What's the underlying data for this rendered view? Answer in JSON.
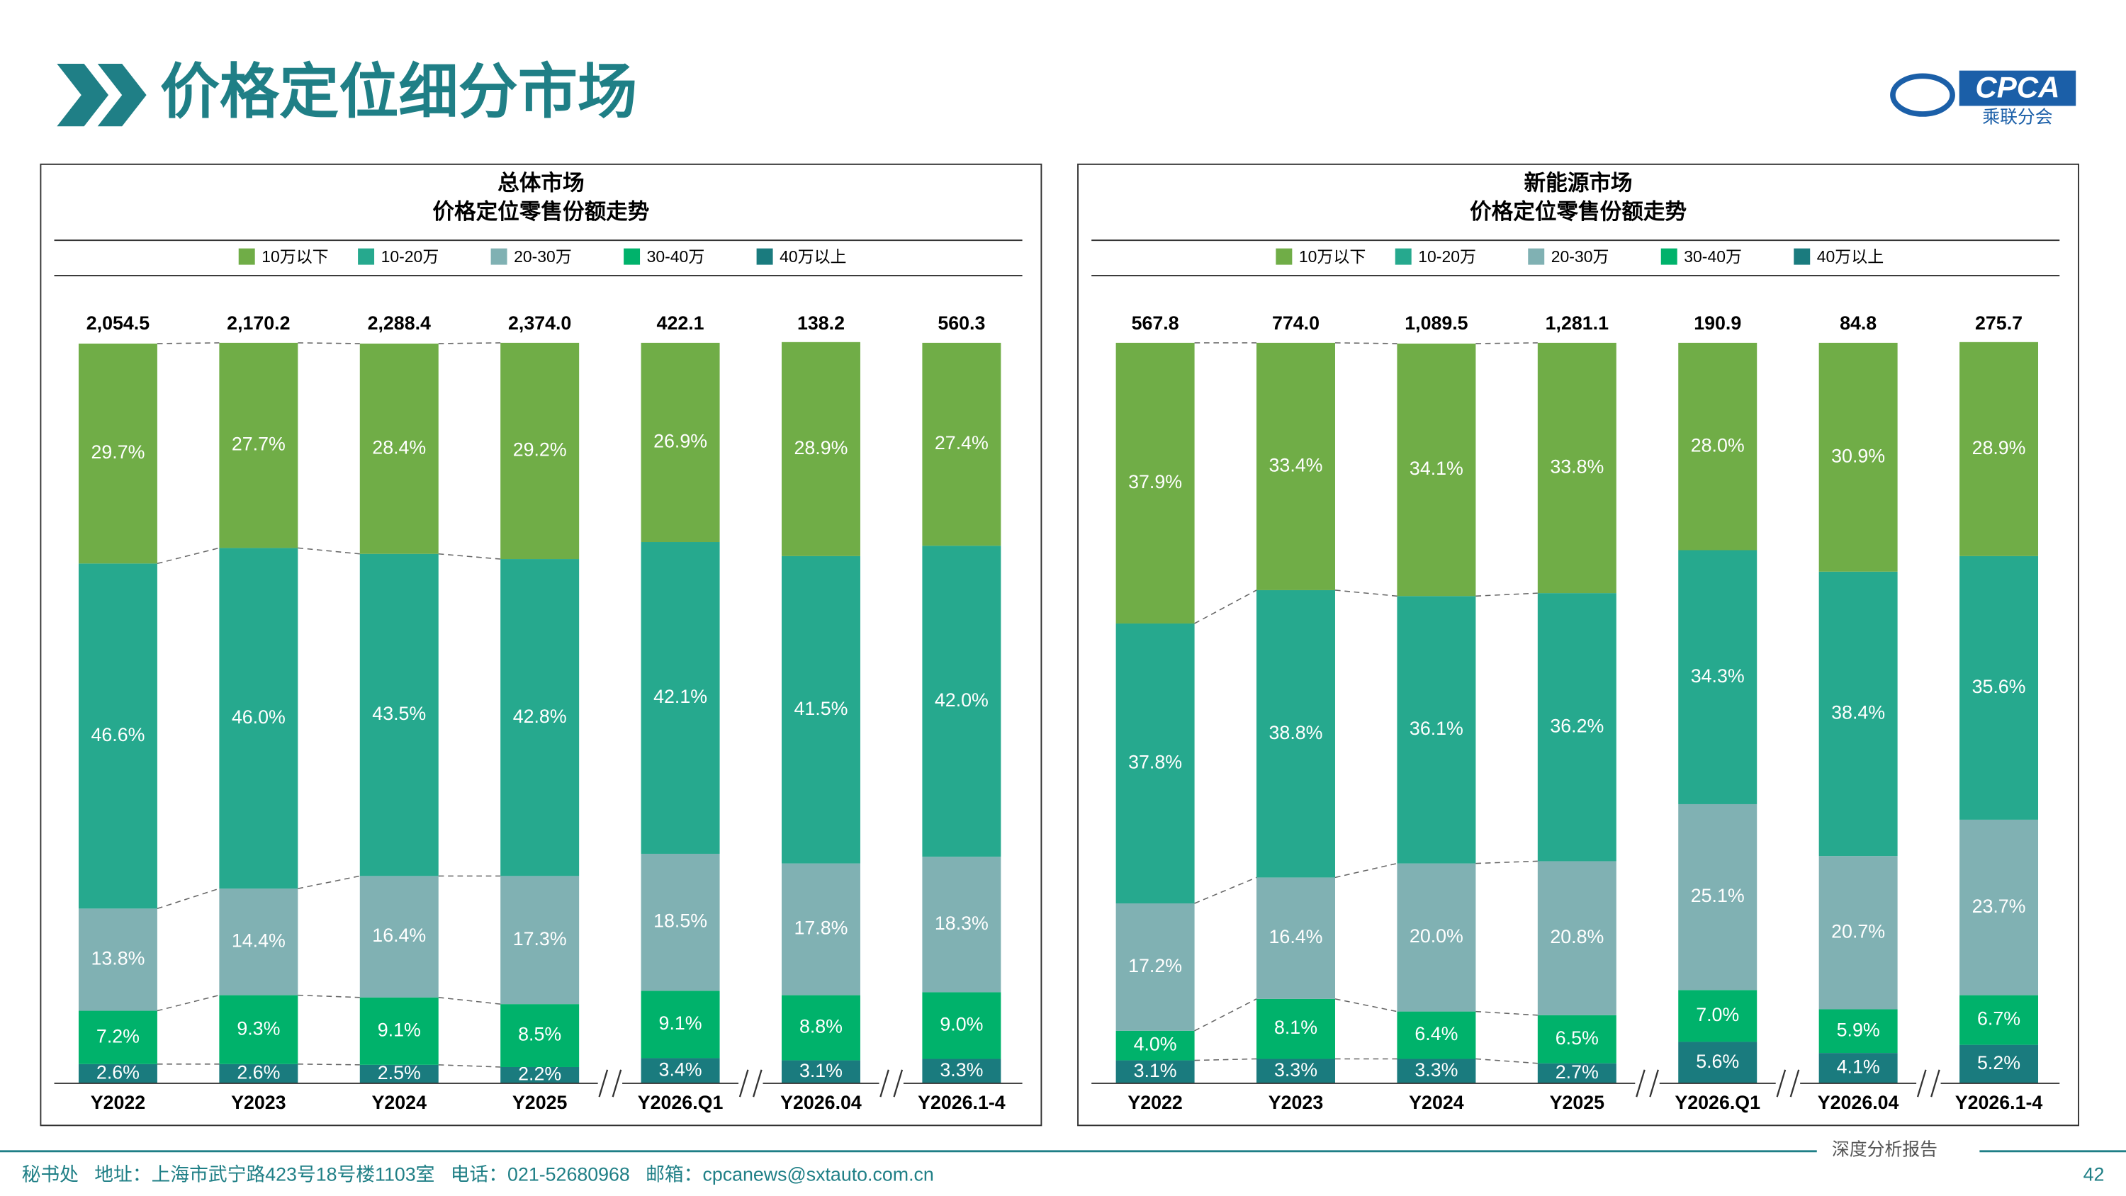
{
  "header": {
    "title": "价格定位细分市场",
    "logo_text": "CPCA",
    "logo_subtext": "乘联分会"
  },
  "footer": {
    "address": "秘书处   地址：上海市武宁路423号18号楼1103室   电话：021-52680968   邮箱：cpcanews@sxtauto.com.cn",
    "report": "深度分析报告",
    "page": "42"
  },
  "chart_data": [
    {
      "type": "stacked_bar",
      "title": "总体市场",
      "subtitle": "价格定位零售份额走势",
      "categories": [
        "Y2022",
        "Y2023",
        "Y2024",
        "Y2025",
        "Y2026.Q1",
        "Y2026.04",
        "Y2026.1-4"
      ],
      "totals": {
        "values": [
          2054.5,
          2170.2,
          2288.4,
          2374.0,
          422.1,
          138.2,
          560.3
        ],
        "value_labels": [
          "2,054.5",
          "2,170.2",
          "2,288.4",
          "2,374.0",
          "422.1",
          "138.2",
          "560.3"
        ]
      },
      "series": [
        {
          "name": "10万以下",
          "color": "#70ad47",
          "values": [
            29.7,
            27.7,
            28.4,
            29.2,
            26.9,
            28.9,
            27.4
          ],
          "value_labels": [
            "29.7%",
            "27.7%",
            "28.4%",
            "29.2%",
            "26.9%",
            "28.9%",
            "27.4%"
          ]
        },
        {
          "name": "10-20万",
          "color": "#26a98e",
          "values": [
            46.6,
            46.0,
            43.5,
            42.8,
            42.1,
            41.5,
            42.0
          ],
          "value_labels": [
            "46.6%",
            "46.0%",
            "43.5%",
            "42.8%",
            "42.1%",
            "41.5%",
            "42.0%"
          ]
        },
        {
          "name": "20-30万",
          "color": "#80b1b3",
          "values": [
            13.8,
            14.4,
            16.4,
            17.3,
            18.5,
            17.8,
            18.3
          ],
          "value_labels": [
            "13.8%",
            "14.4%",
            "16.4%",
            "17.3%",
            "18.5%",
            "17.8%",
            "18.3%"
          ]
        },
        {
          "name": "30-40万",
          "color": "#00b26b",
          "values": [
            7.2,
            9.3,
            9.1,
            8.5,
            9.1,
            8.8,
            9.0
          ],
          "value_labels": [
            "7.2%",
            "9.3%",
            "9.1%",
            "8.5%",
            "9.1%",
            "8.8%",
            "9.0%"
          ]
        },
        {
          "name": "40万以上",
          "color": "#1a7b7e",
          "values": [
            2.6,
            2.6,
            2.5,
            2.2,
            3.4,
            3.1,
            3.3
          ],
          "value_labels": [
            "2.6%",
            "2.6%",
            "2.5%",
            "2.2%",
            "3.4%",
            "3.1%",
            "3.3%"
          ]
        }
      ]
    },
    {
      "type": "stacked_bar",
      "title": "新能源市场",
      "subtitle": "价格定位零售份额走势",
      "categories": [
        "Y2022",
        "Y2023",
        "Y2024",
        "Y2025",
        "Y2026.Q1",
        "Y2026.04",
        "Y2026.1-4"
      ],
      "totals": {
        "values": [
          567.8,
          774.0,
          1089.5,
          1281.1,
          190.9,
          84.8,
          275.7
        ],
        "value_labels": [
          "567.8",
          "774.0",
          "1,089.5",
          "1,281.1",
          "190.9",
          "84.8",
          "275.7"
        ]
      },
      "series": [
        {
          "name": "10万以下",
          "color": "#70ad47",
          "values": [
            37.9,
            33.4,
            34.1,
            33.8,
            28.0,
            30.9,
            28.9
          ],
          "value_labels": [
            "37.9%",
            "33.4%",
            "34.1%",
            "33.8%",
            "28.0%",
            "30.9%",
            "28.9%"
          ]
        },
        {
          "name": "10-20万",
          "color": "#26a98e",
          "values": [
            37.8,
            38.8,
            36.1,
            36.2,
            34.3,
            38.4,
            35.6
          ],
          "value_labels": [
            "37.8%",
            "38.8%",
            "36.1%",
            "36.2%",
            "34.3%",
            "38.4%",
            "35.6%"
          ]
        },
        {
          "name": "20-30万",
          "color": "#80b1b3",
          "values": [
            17.2,
            16.4,
            20.0,
            20.8,
            25.1,
            20.7,
            23.7
          ],
          "value_labels": [
            "17.2%",
            "16.4%",
            "20.0%",
            "20.8%",
            "25.1%",
            "20.7%",
            "23.7%"
          ]
        },
        {
          "name": "30-40万",
          "color": "#00b26b",
          "values": [
            4.0,
            8.1,
            6.4,
            6.5,
            7.0,
            5.9,
            6.7
          ],
          "value_labels": [
            "4.0%",
            "8.1%",
            "6.4%",
            "6.5%",
            "7.0%",
            "5.9%",
            "6.7%"
          ]
        },
        {
          "name": "40万以上",
          "color": "#1a7b7e",
          "values": [
            3.1,
            3.3,
            3.3,
            2.7,
            5.6,
            4.1,
            5.2
          ],
          "value_labels": [
            "3.1%",
            "3.3%",
            "3.3%",
            "2.7%",
            "5.6%",
            "4.1%",
            "5.2%"
          ]
        }
      ]
    }
  ]
}
